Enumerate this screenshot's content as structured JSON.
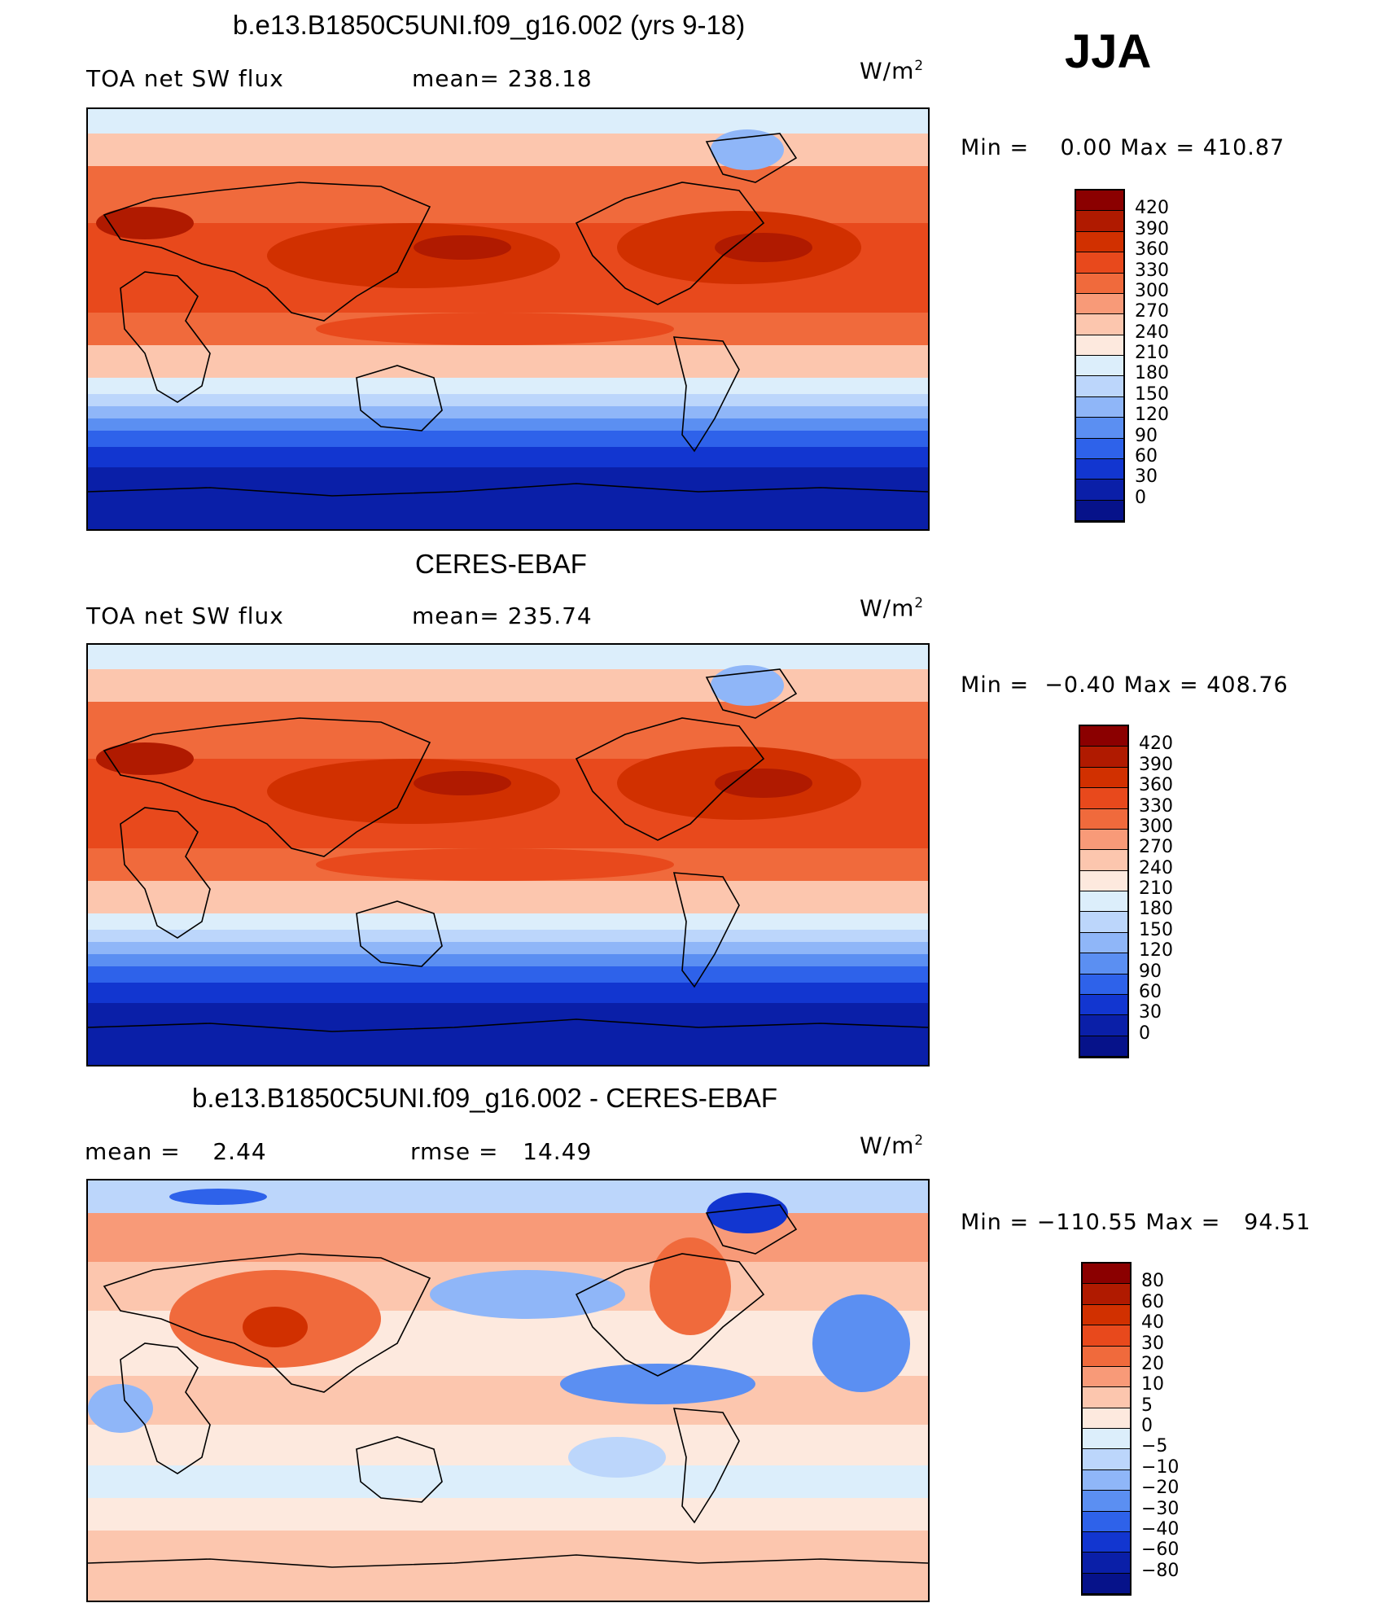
{
  "season": "JJA",
  "panels": [
    {
      "title": "b.e13.B1850C5UNI.f09_g16.002 (yrs 9-18)",
      "left_label": "TOA net SW flux",
      "mid_label": "mean= 238.18",
      "units": "W/m",
      "units_sup": "2",
      "minmax": "Min =    0.00 Max = 410.87"
    },
    {
      "title": "CERES-EBAF",
      "left_label": "TOA net SW flux",
      "mid_label": "mean= 235.74",
      "units": "W/m",
      "units_sup": "2",
      "minmax": "Min =  −0.40 Max = 408.76"
    },
    {
      "title": "b.e13.B1850C5UNI.f09_g16.002 - CERES-EBAF",
      "left_label": "mean =    2.44",
      "mid_label": "rmse =   14.49",
      "units": "W/m",
      "units_sup": "2",
      "minmax": "Min = −110.55 Max =   94.51"
    }
  ],
  "chart_data": [
    {
      "type": "heatmap",
      "title": "b.e13.B1850C5UNI.f09_g16.002 (yrs 9-18)",
      "variable": "TOA net SW flux",
      "mean": 238.18,
      "min": 0.0,
      "max": 410.87,
      "units": "W/m2",
      "colorbar": {
        "levels": [
          "420",
          "390",
          "360",
          "330",
          "300",
          "270",
          "240",
          "210",
          "180",
          "150",
          "120",
          "90",
          "60",
          "30",
          "0"
        ],
        "colors": [
          "#8b0000",
          "#b01a00",
          "#d13000",
          "#e8491c",
          "#f06a3c",
          "#f89a78",
          "#fcc6ae",
          "#fde9de",
          "#dceefb",
          "#bcd6fb",
          "#8fb6f8",
          "#5b8ff2",
          "#2e62ea",
          "#1236d0",
          "#0a1fa8",
          "#06128a"
        ]
      }
    },
    {
      "type": "heatmap",
      "title": "CERES-EBAF",
      "variable": "TOA net SW flux",
      "mean": 235.74,
      "min": -0.4,
      "max": 408.76,
      "units": "W/m2",
      "colorbar": {
        "levels": [
          "420",
          "390",
          "360",
          "330",
          "300",
          "270",
          "240",
          "210",
          "180",
          "150",
          "120",
          "90",
          "60",
          "30",
          "0"
        ],
        "colors": [
          "#8b0000",
          "#b01a00",
          "#d13000",
          "#e8491c",
          "#f06a3c",
          "#f89a78",
          "#fcc6ae",
          "#fde9de",
          "#dceefb",
          "#bcd6fb",
          "#8fb6f8",
          "#5b8ff2",
          "#2e62ea",
          "#1236d0",
          "#0a1fa8",
          "#06128a"
        ]
      }
    },
    {
      "type": "heatmap",
      "title": "b.e13.B1850C5UNI.f09_g16.002 - CERES-EBAF",
      "mean": 2.44,
      "rmse": 14.49,
      "min": -110.55,
      "max": 94.51,
      "units": "W/m2",
      "colorbar": {
        "levels": [
          "80",
          "60",
          "40",
          "30",
          "20",
          "10",
          "5",
          "0",
          "−5",
          "−10",
          "−20",
          "−30",
          "−40",
          "−60",
          "−80"
        ],
        "colors": [
          "#8b0000",
          "#b01a00",
          "#d13000",
          "#e8491c",
          "#f06a3c",
          "#f89a78",
          "#fcc6ae",
          "#fde9de",
          "#dceefb",
          "#bcd6fb",
          "#8fb6f8",
          "#5b8ff2",
          "#2e62ea",
          "#1236d0",
          "#0a1fa8",
          "#06128a"
        ]
      }
    }
  ]
}
